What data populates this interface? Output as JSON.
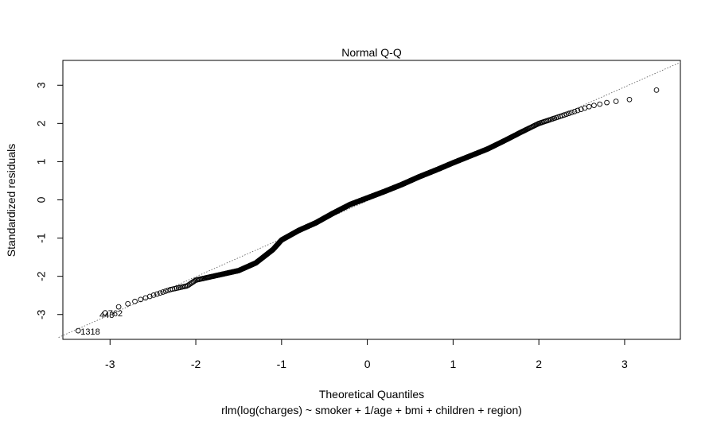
{
  "chart_data": {
    "type": "scatter",
    "title": "Normal Q-Q",
    "subtitle": "",
    "xlabel": "Theoretical Quantiles",
    "xlabel_caption": "rlm(log(charges) ~ smoker + 1/age + bmi + children + region)",
    "ylabel": "Standardized residuals",
    "xlim": [
      -3.55,
      3.65
    ],
    "ylim": [
      -3.65,
      3.65
    ],
    "x_ticks": [
      -3,
      -2,
      -1,
      0,
      1,
      2,
      3
    ],
    "x_tick_labels": [
      "-3",
      "-2",
      "-1",
      "0",
      "1",
      "2",
      "3"
    ],
    "y_ticks": [
      -3,
      -2,
      -1,
      0,
      1,
      2,
      3
    ],
    "y_tick_labels": [
      "-3",
      "-2",
      "-1",
      "0",
      "1",
      "2",
      "3"
    ],
    "grid": false,
    "legend": "none",
    "point_style": "open-circle",
    "point_color": "#000000",
    "reference_line": {
      "style": "dotted",
      "color": "#555555",
      "points": [
        [
          -3.6,
          -3.6
        ],
        [
          3.65,
          3.6
        ]
      ]
    },
    "labeled_points": [
      {
        "label": "1318",
        "x": -3.38,
        "y": -3.44
      },
      {
        "label": "443",
        "x": -3.16,
        "y": -3.01
      },
      {
        "label": "762",
        "x": -3.06,
        "y": -2.96
      }
    ],
    "sample_size": 1338,
    "series": [
      {
        "curve": [
          [
            -3.38,
            -3.44
          ],
          [
            -3.16,
            -3.01
          ],
          [
            -3.06,
            -2.96
          ],
          [
            -2.9,
            -2.8
          ],
          [
            -2.7,
            -2.65
          ],
          [
            -2.5,
            -2.5
          ],
          [
            -2.3,
            -2.35
          ],
          [
            -2.1,
            -2.25
          ],
          [
            -2.0,
            -2.1
          ],
          [
            -1.9,
            -2.05
          ],
          [
            -1.7,
            -1.95
          ],
          [
            -1.5,
            -1.85
          ],
          [
            -1.3,
            -1.65
          ],
          [
            -1.1,
            -1.3
          ],
          [
            -1.0,
            -1.05
          ],
          [
            -0.8,
            -0.8
          ],
          [
            -0.6,
            -0.6
          ],
          [
            -0.4,
            -0.35
          ],
          [
            -0.2,
            -0.12
          ],
          [
            0.0,
            0.05
          ],
          [
            0.2,
            0.22
          ],
          [
            0.4,
            0.4
          ],
          [
            0.6,
            0.6
          ],
          [
            0.8,
            0.78
          ],
          [
            1.0,
            0.97
          ],
          [
            1.2,
            1.15
          ],
          [
            1.4,
            1.33
          ],
          [
            1.6,
            1.55
          ],
          [
            1.8,
            1.78
          ],
          [
            2.0,
            2.0
          ],
          [
            2.2,
            2.15
          ],
          [
            2.4,
            2.3
          ],
          [
            2.6,
            2.45
          ],
          [
            2.8,
            2.55
          ],
          [
            3.05,
            2.62
          ],
          [
            3.38,
            2.88
          ]
        ]
      }
    ]
  }
}
